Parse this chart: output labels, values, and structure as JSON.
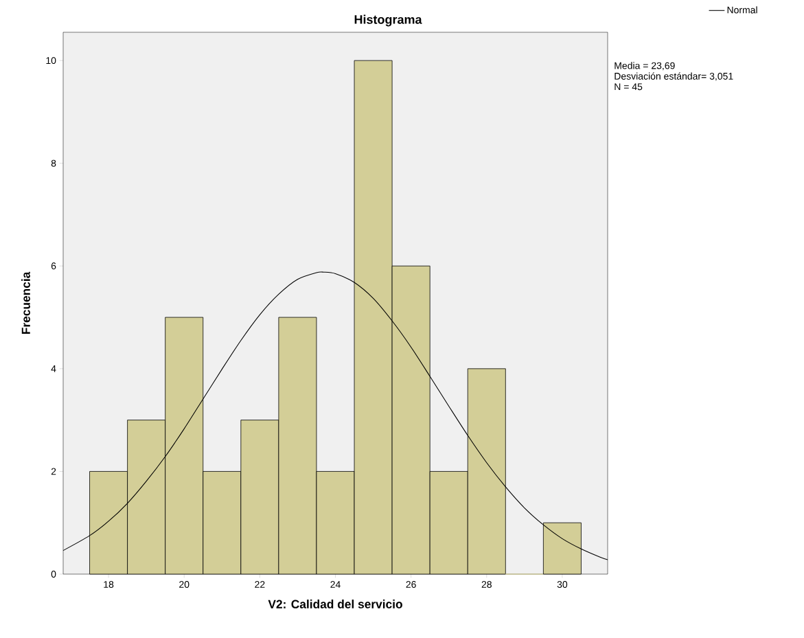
{
  "chart_data": {
    "type": "histogram",
    "title": "Histograma",
    "xlabel": "V2: Calidad del servicio",
    "ylabel": "Frecuencia",
    "xlim": [
      16.8,
      31.2
    ],
    "ylim": [
      0,
      10.55
    ],
    "xticks": [
      18,
      20,
      22,
      24,
      26,
      28,
      30
    ],
    "yticks": [
      0,
      2,
      4,
      6,
      8,
      10
    ],
    "series": [
      {
        "color": "#d3ce97",
        "bins": [
          17.5,
          18.5,
          19.5,
          20.5,
          21.5,
          22.5,
          23.5,
          24.5,
          25.5,
          26.5,
          27.5,
          28.5,
          29.5,
          30.5
        ],
        "values": [
          2,
          3,
          5,
          2,
          3,
          5,
          2,
          10,
          6,
          2,
          4,
          0,
          1
        ]
      },
      {
        "type": "line",
        "name": "Normal",
        "color": "#000000",
        "x": [
          16.8,
          17.5,
          18,
          18.5,
          19,
          19.5,
          20,
          20.5,
          21,
          21.5,
          22,
          22.5,
          23,
          23.5,
          23.69,
          24,
          24.5,
          25,
          25.5,
          26,
          26.5,
          27,
          27.5,
          28,
          28.5,
          29,
          29.5,
          30,
          30.5,
          31,
          31.2
        ],
        "values": [
          0.46,
          0.75,
          1.03,
          1.38,
          1.81,
          2.29,
          2.83,
          3.41,
          3.99,
          4.55,
          5.05,
          5.45,
          5.74,
          5.87,
          5.88,
          5.85,
          5.68,
          5.37,
          4.93,
          4.42,
          3.85,
          3.27,
          2.7,
          2.17,
          1.7,
          1.29,
          0.96,
          0.69,
          0.49,
          0.33,
          0.28
        ]
      }
    ],
    "legend": "top right",
    "grid": false,
    "annotations": [
      "Media = 23,69",
      "Desviación estándar= 3,051",
      "N = 45"
    ]
  }
}
